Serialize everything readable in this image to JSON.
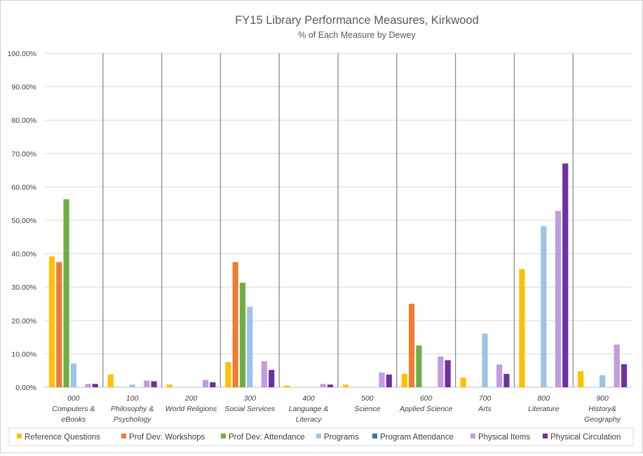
{
  "chart_data": {
    "type": "bar",
    "title": "FY15 Library Performance Measures, Kirkwood",
    "subtitle": "% of Each Measure by Dewey",
    "xlabel": "",
    "ylabel": "",
    "ylim": [
      0,
      100
    ],
    "yticks": [
      "0.00%",
      "10.00%",
      "20.00%",
      "30.00%",
      "40.00%",
      "50.00%",
      "60.00%",
      "70.00%",
      "80.00%",
      "90.00%",
      "100.00%"
    ],
    "grid": true,
    "legend": "bottom",
    "categories": [
      [
        "000",
        "Computers &",
        "eBooks"
      ],
      [
        "100",
        "Philosophy &",
        "Psychology"
      ],
      [
        "200",
        "World Religions"
      ],
      [
        "300",
        "Social Services"
      ],
      [
        "400",
        "Language &",
        "Literacy"
      ],
      [
        "500",
        "Science"
      ],
      [
        "600",
        "Applied Science"
      ],
      [
        "700",
        "Arts"
      ],
      [
        "800",
        "Literature"
      ],
      [
        "900",
        "History&",
        "Geography"
      ]
    ],
    "series": [
      {
        "name": "Reference Questions",
        "color": "#FFC000",
        "values": [
          39.2,
          3.8,
          0.8,
          7.5,
          0.5,
          0.8,
          4.0,
          2.9,
          35.4,
          4.8
        ]
      },
      {
        "name": "Prof Dev: Workshops",
        "color": "#ED7D31",
        "values": [
          37.5,
          0,
          0,
          37.5,
          0,
          0,
          25.0,
          0,
          0,
          0
        ]
      },
      {
        "name": "Prof Dev: Attendance",
        "color": "#70AD47",
        "values": [
          56.3,
          0,
          0,
          31.3,
          0,
          0,
          12.5,
          0,
          0,
          0
        ]
      },
      {
        "name": "Programs",
        "color": "#9DC3E6",
        "values": [
          7.1,
          0.8,
          0,
          24.1,
          0,
          0,
          0,
          16.1,
          48.2,
          3.6
        ]
      },
      {
        "name": "Program Attendance",
        "color": "#2E75B6",
        "values": [
          0,
          0,
          0,
          0,
          0,
          0,
          0,
          0,
          0,
          0
        ]
      },
      {
        "name": "Physical Items",
        "color": "#C39BE0",
        "values": [
          1.0,
          2.0,
          2.2,
          7.8,
          1.0,
          4.4,
          9.2,
          6.8,
          52.8,
          12.8
        ]
      },
      {
        "name": "Physical Circulation",
        "color": "#7030A0",
        "values": [
          1.0,
          1.8,
          1.5,
          5.2,
          0.8,
          3.8,
          8.1,
          4.0,
          67.0,
          6.9
        ]
      }
    ]
  }
}
